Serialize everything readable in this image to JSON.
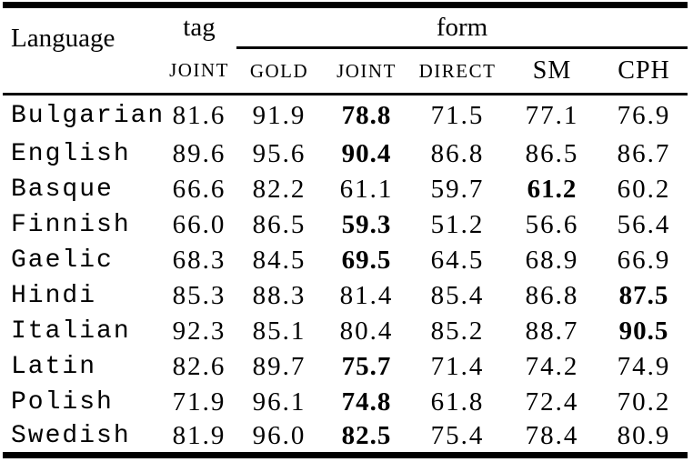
{
  "table": {
    "header": {
      "language": "Language",
      "tag": "tag",
      "form": "form",
      "subcolumns": [
        "JOINT",
        "GOLD",
        "JOINT",
        "DIRECT",
        "SM",
        "CPH"
      ]
    },
    "rows": [
      {
        "language": "Bulgarian",
        "values": [
          "81.6",
          "91.9",
          "78.8",
          "71.5",
          "77.1",
          "76.9"
        ],
        "bold_index": 2
      },
      {
        "language": "English",
        "values": [
          "89.6",
          "95.6",
          "90.4",
          "86.8",
          "86.5",
          "86.7"
        ],
        "bold_index": 2
      },
      {
        "language": "Basque",
        "values": [
          "66.6",
          "82.2",
          "61.1",
          "59.7",
          "61.2",
          "60.2"
        ],
        "bold_index": 4
      },
      {
        "language": "Finnish",
        "values": [
          "66.0",
          "86.5",
          "59.3",
          "51.2",
          "56.6",
          "56.4"
        ],
        "bold_index": 2
      },
      {
        "language": "Gaelic",
        "values": [
          "68.3",
          "84.5",
          "69.5",
          "64.5",
          "68.9",
          "66.9"
        ],
        "bold_index": 2
      },
      {
        "language": "Hindi",
        "values": [
          "85.3",
          "88.3",
          "81.4",
          "85.4",
          "86.8",
          "87.5"
        ],
        "bold_index": 5
      },
      {
        "language": "Italian",
        "values": [
          "92.3",
          "85.1",
          "80.4",
          "85.2",
          "88.7",
          "90.5"
        ],
        "bold_index": 5
      },
      {
        "language": "Latin",
        "values": [
          "82.6",
          "89.7",
          "75.7",
          "71.4",
          "74.2",
          "74.9"
        ],
        "bold_index": 2
      },
      {
        "language": "Polish",
        "values": [
          "71.9",
          "96.1",
          "74.8",
          "61.8",
          "72.4",
          "70.2"
        ],
        "bold_index": 2
      },
      {
        "language": "Swedish",
        "values": [
          "81.9",
          "96.0",
          "82.5",
          "75.4",
          "78.4",
          "80.9"
        ],
        "bold_index": 2
      }
    ]
  }
}
